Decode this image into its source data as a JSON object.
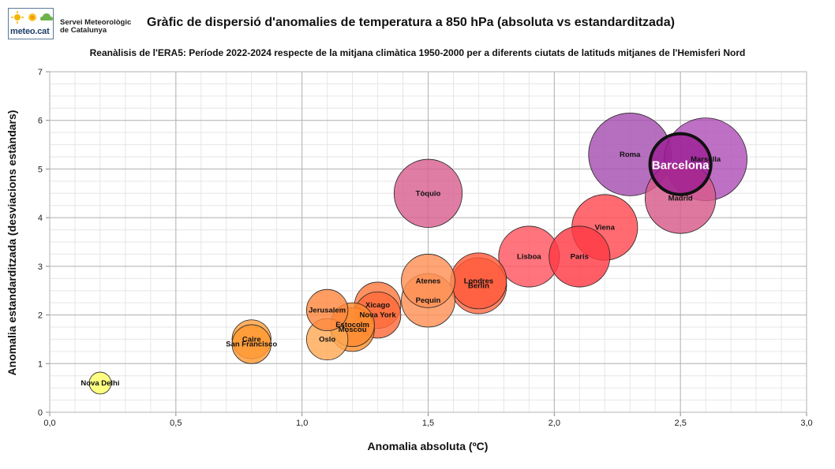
{
  "logo": {
    "brand": "meteo.cat",
    "org_line1": "Servei Meteorològic",
    "org_line2": "de Catalunya"
  },
  "chart_data": {
    "type": "bubble",
    "title": "Gràfic de dispersió d'anomalies de temperatura a 850 hPa (absoluta vs estandarditzada)",
    "subtitle": "Reanàlisis de l'ERA5: Període 2022-2024 respecte de la mitjana climàtica 1950-2000 per a diferents ciutats de latituds mitjanes de l'Hemisferi Nord",
    "xlabel": "Anomalia absoluta (ºC)",
    "ylabel": "Anomalia estandarditzada (desviacions estàndars)",
    "xlim": [
      0,
      3
    ],
    "ylim": [
      0,
      7
    ],
    "x_ticks": [
      "0,0",
      "0,5",
      "1,0",
      "1,5",
      "2,0",
      "2,5",
      "3,0"
    ],
    "y_ticks": [
      "0",
      "1",
      "2",
      "3",
      "4",
      "5",
      "6",
      "7"
    ],
    "grid": true,
    "points": [
      {
        "name": "Nova Delhi",
        "x": 0.2,
        "y": 0.6,
        "size": 0.45,
        "color": "#ffff66"
      },
      {
        "name": "Caire",
        "x": 0.8,
        "y": 1.5,
        "size": 0.8,
        "color": "#ffa040"
      },
      {
        "name": "San Francisco",
        "x": 0.8,
        "y": 1.4,
        "size": 0.8,
        "color": "#ff9933"
      },
      {
        "name": "Oslo",
        "x": 1.1,
        "y": 1.5,
        "size": 0.85,
        "color": "#ffaa55"
      },
      {
        "name": "Jerusalem",
        "x": 1.1,
        "y": 2.1,
        "size": 0.85,
        "color": "#ff8840"
      },
      {
        "name": "Moscou",
        "x": 1.2,
        "y": 1.7,
        "size": 0.9,
        "color": "#ff9030"
      },
      {
        "name": "Estocolm",
        "x": 1.2,
        "y": 1.8,
        "size": 0.9,
        "color": "#ff8a30"
      },
      {
        "name": "Xicago",
        "x": 1.3,
        "y": 2.2,
        "size": 0.95,
        "color": "#ff7a40"
      },
      {
        "name": "Nova York",
        "x": 1.3,
        "y": 2.0,
        "size": 0.95,
        "color": "#ff6a3a"
      },
      {
        "name": "Pequin",
        "x": 1.5,
        "y": 2.3,
        "size": 1.1,
        "color": "#ff9055"
      },
      {
        "name": "Atenes",
        "x": 1.5,
        "y": 2.7,
        "size": 1.1,
        "color": "#ff9055"
      },
      {
        "name": "Berlin",
        "x": 1.7,
        "y": 2.6,
        "size": 1.15,
        "color": "#ff6a45"
      },
      {
        "name": "Londres",
        "x": 1.7,
        "y": 2.7,
        "size": 1.15,
        "color": "#ff5a3a"
      },
      {
        "name": "Tòquio",
        "x": 1.5,
        "y": 4.5,
        "size": 1.4,
        "color": "#d86090"
      },
      {
        "name": "Lisboa",
        "x": 1.9,
        "y": 3.2,
        "size": 1.25,
        "color": "#ff5560"
      },
      {
        "name": "Paris",
        "x": 2.1,
        "y": 3.2,
        "size": 1.25,
        "color": "#ff3a45"
      },
      {
        "name": "Viena",
        "x": 2.2,
        "y": 3.8,
        "size": 1.35,
        "color": "#ff4a50"
      },
      {
        "name": "Madrid",
        "x": 2.5,
        "y": 4.4,
        "size": 1.45,
        "color": "#d85a8a"
      },
      {
        "name": "Roma",
        "x": 2.3,
        "y": 5.3,
        "size": 1.7,
        "color": "#a64fb0"
      },
      {
        "name": "Marsella",
        "x": 2.6,
        "y": 5.2,
        "size": 1.7,
        "color": "#b050b8"
      },
      {
        "name": "Barcelona",
        "x": 2.5,
        "y": 5.1,
        "size": 1.25,
        "color": "#9a1890",
        "highlight": true
      }
    ]
  }
}
